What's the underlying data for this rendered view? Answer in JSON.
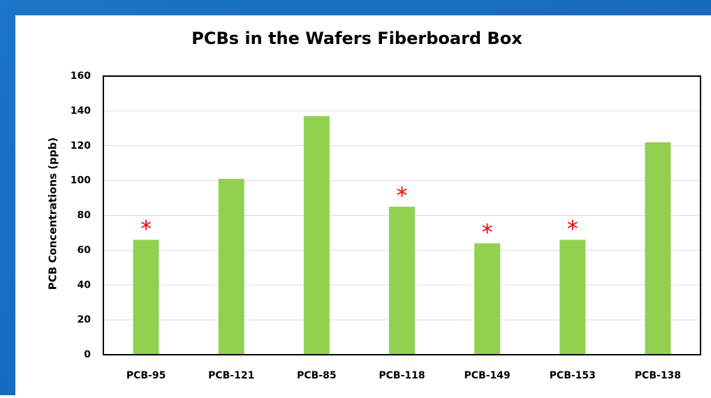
{
  "chart_data": {
    "type": "bar",
    "title": "PCBs in the Wafers Fiberboard Box",
    "y_label": "PCB Concentrations  (ppb)",
    "categories": [
      "PCB-95",
      "PCB-121",
      "PCB-85",
      "PCB-118",
      "PCB-149",
      "PCB-153",
      "PCB-138"
    ],
    "values": [
      66,
      101,
      137,
      85,
      64,
      66,
      122
    ],
    "color": "#92d050",
    "ylim": [
      0,
      160
    ],
    "yticks": [
      0,
      20,
      40,
      60,
      80,
      100,
      120,
      140,
      160
    ],
    "grid": true,
    "annotations": [
      {
        "category": "PCB-95",
        "text": "*"
      },
      {
        "category": "PCB-118",
        "text": "*"
      },
      {
        "category": "PCB-149",
        "text": "*"
      },
      {
        "category": "PCB-153",
        "text": "*"
      }
    ],
    "annotation_color": "#ff0000"
  }
}
